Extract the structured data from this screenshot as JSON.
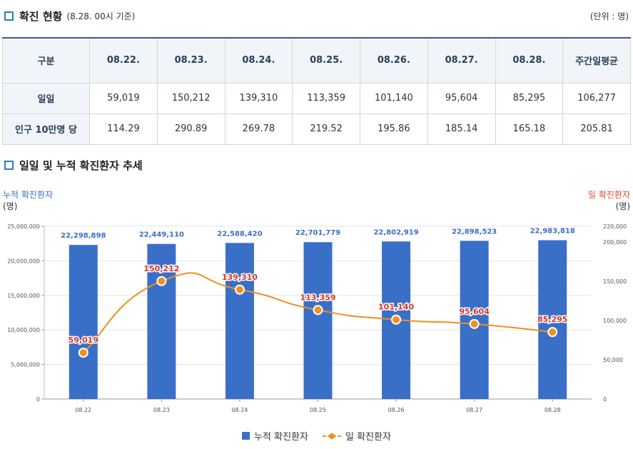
{
  "section1": {
    "title": "확진 현황",
    "subtitle": "(8.28. 00시 기준)",
    "unit": "(단위 : 명)"
  },
  "table": {
    "header": [
      "구분",
      "08.22.",
      "08.23.",
      "08.24.",
      "08.25.",
      "08.26.",
      "08.27.",
      "08.28.",
      "주간일평균"
    ],
    "rows": [
      {
        "label": "일일",
        "values": [
          "59,019",
          "150,212",
          "139,310",
          "113,359",
          "101,140",
          "95,604",
          "85,295",
          "106,277"
        ]
      },
      {
        "label": "인구 10만명 당",
        "values": [
          "114.29",
          "290.89",
          "269.78",
          "219.52",
          "195.86",
          "185.14",
          "165.18",
          "205.81"
        ]
      }
    ]
  },
  "section2": {
    "title": "일일 및 누적 확진환자 추세"
  },
  "chart_data": {
    "type": "bar+line",
    "categories": [
      "08.22",
      "08.23",
      "08.24",
      "08.25",
      "08.26",
      "08.27",
      "08.28"
    ],
    "series": [
      {
        "name": "누적 확진환자",
        "type": "bar",
        "axis": "left",
        "values": [
          22298898,
          22449110,
          22588420,
          22701779,
          22802919,
          22898523,
          22983818
        ],
        "labels": [
          "22,298,898",
          "22,449,110",
          "22,588,420",
          "22,701,779",
          "22,802,919",
          "22,898,523",
          "22,983,818"
        ]
      },
      {
        "name": "일 확진환자",
        "type": "line",
        "axis": "right",
        "values": [
          59019,
          150212,
          139310,
          113359,
          101140,
          95604,
          85295
        ],
        "labels": [
          "59,019",
          "150,212",
          "139,310",
          "113,359",
          "101,140",
          "95,604",
          "85,295"
        ]
      }
    ],
    "left_axis": {
      "title": "누적 확진환자",
      "unit": "(명)",
      "min": 0,
      "max": 25000000,
      "ticks": [
        0,
        5000000,
        10000000,
        15000000,
        20000000,
        25000000
      ],
      "tick_labels": [
        "0",
        "5,000,000",
        "10,000,000",
        "15,000,000",
        "20,000,000",
        "25,000,000"
      ]
    },
    "right_axis": {
      "title": "일 확진환자",
      "unit": "(명)",
      "min": 0,
      "max": 220000,
      "ticks": [
        0,
        50000,
        100000,
        150000,
        200000,
        220000
      ],
      "tick_labels": [
        "0",
        "50,000",
        "100,000",
        "150,000",
        "200,000",
        "220,000"
      ]
    },
    "x_tick_labels": [
      "08.22",
      "08.23",
      "08.24",
      "08.25",
      "08.26",
      "08.27",
      "08.28"
    ],
    "legend": {
      "bar": "누적 확진환자",
      "line": "일 확진환자",
      "position": "bottom-center"
    },
    "colors": {
      "bar": "#3a6fc8",
      "line": "#f0901e",
      "left_title": "#3a6fc8",
      "right_title": "#e04a2c",
      "line_label": "#d9342b",
      "bar_label": "#3a6fc8"
    }
  }
}
